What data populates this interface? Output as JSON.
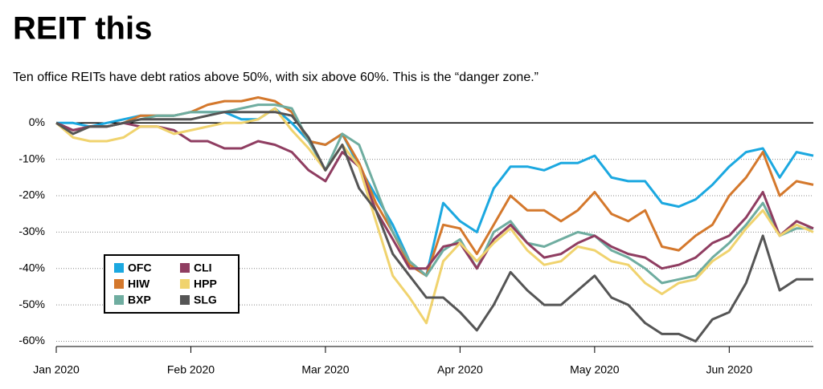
{
  "chart_data": {
    "type": "line",
    "title": "REIT this",
    "subtitle": "Ten office REITs have debt ratios above 50%, with six above 60%. This is the “danger zone.”",
    "categories": [
      "Jan 2020",
      null,
      null,
      null,
      null,
      null,
      null,
      null,
      "Feb 2020",
      null,
      null,
      null,
      null,
      null,
      null,
      null,
      "Mar 2020",
      null,
      null,
      null,
      null,
      null,
      null,
      null,
      "Apr 2020",
      null,
      null,
      null,
      null,
      null,
      null,
      null,
      "May 2020",
      null,
      null,
      null,
      null,
      null,
      null,
      null,
      "Jun 2020",
      null,
      null,
      null,
      null,
      null
    ],
    "ylim": [
      -61,
      8
    ],
    "yticks": [
      {
        "value": -60,
        "label": "-60%"
      },
      {
        "value": -50,
        "label": "-50%"
      },
      {
        "value": -40,
        "label": "-40%"
      },
      {
        "value": -30,
        "label": "-30%"
      },
      {
        "value": -20,
        "label": "-20%"
      },
      {
        "value": -10,
        "label": "-10%"
      },
      {
        "value": 0,
        "label": "0%"
      }
    ],
    "grid": true,
    "legend": "lower-left",
    "series": [
      {
        "name": "OFC",
        "color": "#1ba8e0",
        "values": [
          0,
          0,
          -1,
          0,
          1,
          2,
          2,
          2,
          3,
          3,
          3,
          1,
          1,
          4,
          0,
          -5,
          -6,
          -3,
          -12,
          -20,
          -28,
          -38,
          -42,
          -22,
          -27,
          -30,
          -18,
          -12,
          -12,
          -13,
          -11,
          -11,
          -9,
          -15,
          -16,
          -16,
          -22,
          -23,
          -21,
          -17,
          -12,
          -8,
          -7,
          -15,
          -8,
          -9
        ]
      },
      {
        "name": "HIW",
        "color": "#d4782c",
        "values": [
          0,
          -2,
          -1,
          -1,
          0,
          2,
          2,
          2,
          3,
          5,
          6,
          6,
          7,
          6,
          3,
          -5,
          -6,
          -3,
          -11,
          -22,
          -30,
          -39,
          -42,
          -28,
          -29,
          -36,
          -28,
          -20,
          -24,
          -24,
          -27,
          -24,
          -19,
          -25,
          -27,
          -24,
          -34,
          -35,
          -31,
          -28,
          -20,
          -15,
          -8,
          -20,
          -16,
          -17
        ]
      },
      {
        "name": "BXP",
        "color": "#6fada0",
        "values": [
          0,
          -2,
          -1,
          -1,
          0,
          1,
          2,
          2,
          3,
          3,
          3,
          4,
          5,
          5,
          4,
          -5,
          -13,
          -3,
          -6,
          -18,
          -30,
          -38,
          -42,
          -35,
          -32,
          -40,
          -30,
          -27,
          -33,
          -34,
          -32,
          -30,
          -31,
          -35,
          -37,
          -40,
          -44,
          -43,
          -42,
          -37,
          -33,
          -28,
          -22,
          -31,
          -29,
          -29
        ]
      },
      {
        "name": "CLI",
        "color": "#8f3d61",
        "values": [
          0,
          -2,
          -1,
          -1,
          0,
          -1,
          -1,
          -2,
          -5,
          -5,
          -7,
          -7,
          -5,
          -6,
          -8,
          -13,
          -16,
          -8,
          -12,
          -24,
          -32,
          -40,
          -40,
          -34,
          -33,
          -40,
          -32,
          -28,
          -33,
          -37,
          -36,
          -33,
          -31,
          -34,
          -36,
          -37,
          -40,
          -39,
          -37,
          -33,
          -31,
          -26,
          -19,
          -31,
          -27,
          -29
        ]
      },
      {
        "name": "HPP",
        "color": "#f0d36e",
        "values": [
          0,
          -4,
          -5,
          -5,
          -4,
          -1,
          -1,
          -3,
          -2,
          -1,
          0,
          0,
          1,
          4,
          -2,
          -7,
          -13,
          -6,
          -12,
          -27,
          -42,
          -48,
          -55,
          -38,
          -33,
          -38,
          -33,
          -29,
          -35,
          -39,
          -38,
          -34,
          -35,
          -38,
          -39,
          -44,
          -47,
          -44,
          -43,
          -38,
          -35,
          -29,
          -24,
          -31,
          -28,
          -30
        ]
      },
      {
        "name": "SLG",
        "color": "#555555",
        "values": [
          0,
          -3,
          -1,
          -1,
          0,
          1,
          1,
          1,
          1,
          2,
          3,
          3,
          3,
          3,
          2,
          -4,
          -13,
          -6,
          -18,
          -24,
          -36,
          -42,
          -48,
          -48,
          -52,
          -57,
          -50,
          -41,
          -46,
          -50,
          -50,
          -46,
          -42,
          -48,
          -50,
          -55,
          -58,
          -58,
          -60,
          -54,
          -52,
          -44,
          -31,
          -46,
          -43,
          -43
        ]
      }
    ]
  }
}
